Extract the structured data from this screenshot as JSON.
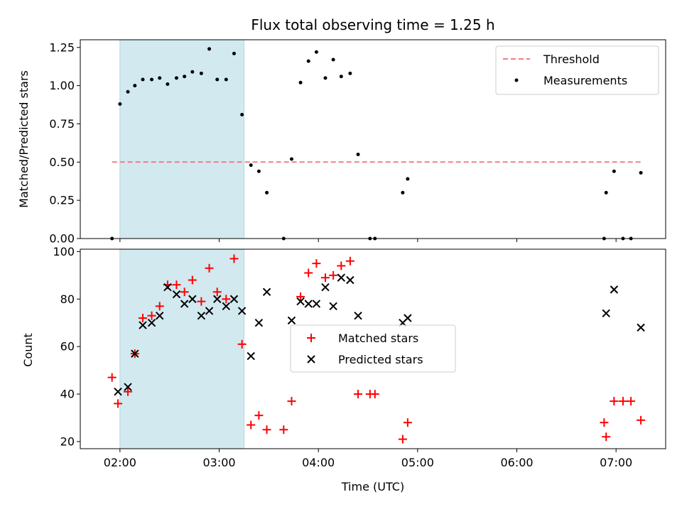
{
  "chart_data": [
    {
      "type": "scatter",
      "title": "Flux total observing time = 1.25 h",
      "xlabel": "",
      "ylabel": "Matched/Predicted stars",
      "xlim": [
        1.6,
        7.5
      ],
      "ylim": [
        0,
        1.3
      ],
      "yticks": [
        0,
        0.25,
        0.5,
        0.75,
        1.0,
        1.25
      ],
      "ytick_labels": [
        "0.00",
        "0.25",
        "0.50",
        "0.75",
        "1.00",
        "1.25"
      ],
      "xticks": [
        2,
        3,
        4,
        5,
        6,
        7
      ],
      "shaded_span": [
        2.0,
        3.25
      ],
      "shade_color": "#d2e9f0",
      "legend": {
        "placement": "upper-right",
        "entries": [
          "Threshold",
          "Measurements"
        ]
      },
      "threshold": {
        "name": "Threshold",
        "y": 0.5,
        "x_range": [
          1.92,
          7.25
        ],
        "color": "#f08080"
      },
      "series": [
        {
          "name": "Measurements",
          "color": "#000000",
          "x": [
            1.92,
            2.0,
            2.08,
            2.15,
            2.23,
            2.32,
            2.4,
            2.48,
            2.57,
            2.65,
            2.73,
            2.82,
            2.9,
            2.98,
            3.07,
            3.15,
            3.23,
            3.32,
            3.4,
            3.48,
            3.65,
            3.73,
            3.82,
            3.9,
            3.98,
            4.07,
            4.15,
            4.23,
            4.32,
            4.4,
            4.52,
            4.57,
            4.85,
            4.9,
            6.88,
            6.9,
            6.98,
            7.07,
            7.15,
            7.25
          ],
          "y": [
            0.0,
            0.88,
            0.96,
            1.0,
            1.04,
            1.04,
            1.05,
            1.01,
            1.05,
            1.06,
            1.09,
            1.08,
            1.24,
            1.04,
            1.04,
            1.21,
            0.81,
            0.48,
            0.44,
            0.3,
            0.0,
            0.52,
            1.02,
            1.16,
            1.22,
            1.05,
            1.17,
            1.06,
            1.08,
            0.55,
            0.0,
            0.0,
            0.3,
            0.39,
            0.0,
            0.3,
            0.44,
            0.0,
            0.0,
            0.43
          ]
        }
      ]
    },
    {
      "type": "scatter",
      "title": "",
      "xlabel": "Time (UTC)",
      "ylabel": "Count",
      "xlim": [
        1.6,
        7.5
      ],
      "ylim": [
        17,
        101
      ],
      "yticks": [
        20,
        40,
        60,
        80,
        100
      ],
      "ytick_labels": [
        "20",
        "40",
        "60",
        "80",
        "100"
      ],
      "xticks": [
        2,
        3,
        4,
        5,
        6,
        7
      ],
      "xtick_labels": [
        "02:00",
        "03:00",
        "04:00",
        "05:00",
        "06:00",
        "07:00"
      ],
      "shaded_span": [
        2.0,
        3.25
      ],
      "shade_color": "#d2e9f0",
      "legend": {
        "placement": "center",
        "entries": [
          "Matched stars",
          "Predicted stars"
        ]
      },
      "series": [
        {
          "name": "Matched stars",
          "marker": "plus",
          "color": "#ff0000",
          "x": [
            1.92,
            1.98,
            2.08,
            2.15,
            2.23,
            2.32,
            2.4,
            2.48,
            2.57,
            2.65,
            2.73,
            2.82,
            2.9,
            2.98,
            3.07,
            3.15,
            3.23,
            3.32,
            3.4,
            3.48,
            3.65,
            3.73,
            3.82,
            3.9,
            3.98,
            4.07,
            4.15,
            4.23,
            4.32,
            4.4,
            4.52,
            4.57,
            4.85,
            4.9,
            6.88,
            6.9,
            6.98,
            7.07,
            7.15,
            7.25
          ],
          "y": [
            47,
            36,
            41,
            57,
            72,
            73,
            77,
            86,
            86,
            83,
            88,
            79,
            93,
            83,
            80,
            97,
            61,
            27,
            31,
            25,
            25,
            37,
            81,
            91,
            95,
            89,
            90,
            94,
            96,
            40,
            40,
            40,
            21,
            28,
            28,
            22,
            37,
            37,
            37,
            29
          ]
        },
        {
          "name": "Predicted stars",
          "marker": "x",
          "color": "#000000",
          "x": [
            1.98,
            2.08,
            2.15,
            2.23,
            2.32,
            2.4,
            2.48,
            2.57,
            2.65,
            2.73,
            2.82,
            2.9,
            2.98,
            3.07,
            3.15,
            3.23,
            3.32,
            3.4,
            3.48,
            3.73,
            3.82,
            3.9,
            3.98,
            4.07,
            4.15,
            4.23,
            4.32,
            4.4,
            4.85,
            4.9,
            6.9,
            6.98,
            7.25
          ],
          "y": [
            41,
            43,
            57,
            69,
            70,
            73,
            85,
            82,
            78,
            80,
            73,
            75,
            80,
            77,
            80,
            75,
            56,
            70,
            83,
            71,
            79,
            78,
            78,
            85,
            77,
            89,
            88,
            73,
            70,
            72,
            74,
            84,
            68
          ]
        }
      ]
    }
  ]
}
